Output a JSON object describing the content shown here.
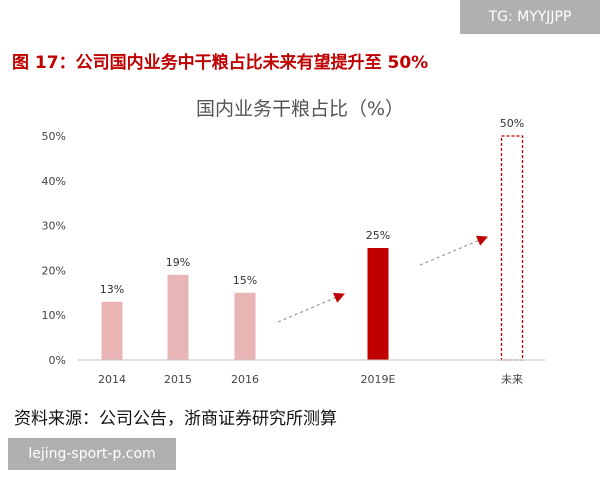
{
  "watermark_top": "TG: MYYJJPP",
  "figure_title": "图 17：公司国内业务中干粮占比未来有望提升至 50%",
  "source_text": "资料来源：公司公告，浙商证券研究所测算",
  "watermark_bottom": "lejing-sport-p.com",
  "colors": {
    "history_bar": "#e8b4b4",
    "estimate_bar": "#c00000",
    "target_outline": "#c00000",
    "title": "#c00000",
    "arrow": "#c00000"
  },
  "chart_data": {
    "type": "bar",
    "title": "国内业务干粮占比（%）",
    "categories": [
      "2014",
      "2015",
      "2016",
      "2019E",
      "未来"
    ],
    "values": [
      13,
      19,
      15,
      25,
      50
    ],
    "value_labels": [
      "13%",
      "19%",
      "15%",
      "25%",
      "50%"
    ],
    "bar_styles": [
      "history",
      "history",
      "history",
      "estimate",
      "target-dashed"
    ],
    "yticks": [
      "0%",
      "10%",
      "20%",
      "30%",
      "40%",
      "50%"
    ],
    "ylim": [
      0,
      50
    ],
    "grid": false,
    "legend": "none"
  }
}
